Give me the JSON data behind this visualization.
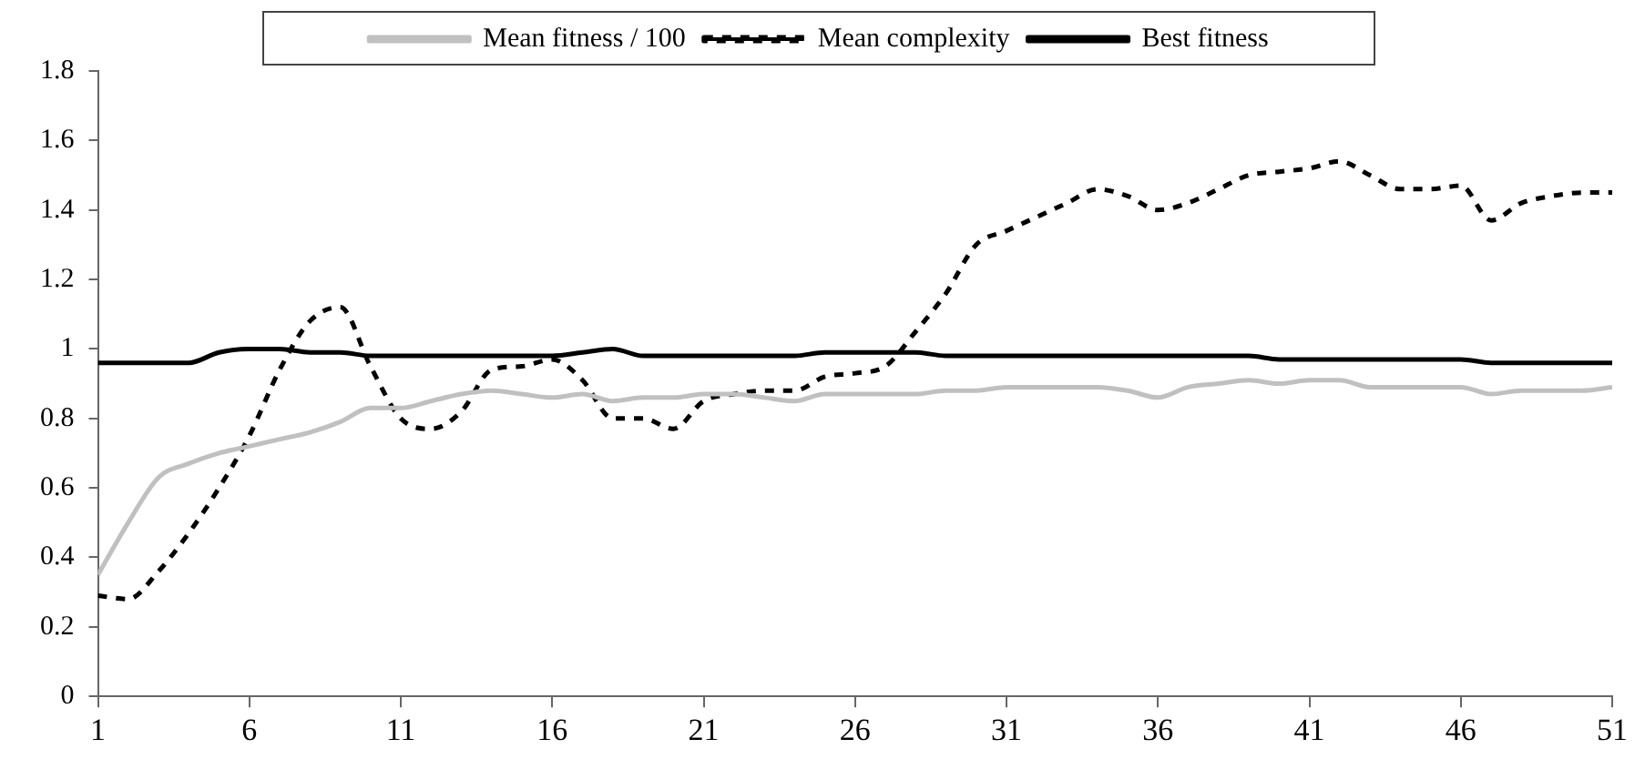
{
  "chart_data": {
    "type": "line",
    "x": [
      1,
      2,
      3,
      4,
      5,
      6,
      7,
      8,
      9,
      10,
      11,
      12,
      13,
      14,
      15,
      16,
      17,
      18,
      19,
      20,
      21,
      22,
      23,
      24,
      25,
      26,
      27,
      28,
      29,
      30,
      31,
      32,
      33,
      34,
      35,
      36,
      37,
      38,
      39,
      40,
      41,
      42,
      43,
      44,
      45,
      46,
      47,
      48,
      49,
      50,
      51
    ],
    "xlim": [
      1,
      51
    ],
    "xticks": [
      1,
      6,
      11,
      16,
      21,
      26,
      31,
      36,
      41,
      46,
      51
    ],
    "series": [
      {
        "name": "Mean fitness / 100",
        "color": "#c0c0c0",
        "line_style": "solid",
        "values": [
          0.35,
          0.5,
          0.63,
          0.67,
          0.7,
          0.72,
          0.74,
          0.76,
          0.79,
          0.83,
          0.83,
          0.85,
          0.87,
          0.88,
          0.87,
          0.86,
          0.87,
          0.85,
          0.86,
          0.86,
          0.87,
          0.87,
          0.86,
          0.85,
          0.87,
          0.87,
          0.87,
          0.87,
          0.88,
          0.88,
          0.89,
          0.89,
          0.89,
          0.89,
          0.88,
          0.86,
          0.89,
          0.9,
          0.91,
          0.9,
          0.91,
          0.91,
          0.89,
          0.89,
          0.89,
          0.89,
          0.87,
          0.88,
          0.88,
          0.88,
          0.89
        ]
      },
      {
        "name": "Mean complexity",
        "color": "#000000",
        "line_style": "dashed",
        "values": [
          0.29,
          0.28,
          0.36,
          0.47,
          0.6,
          0.75,
          0.94,
          1.08,
          1.12,
          0.95,
          0.8,
          0.77,
          0.82,
          0.94,
          0.95,
          0.97,
          0.91,
          0.8,
          0.8,
          0.77,
          0.85,
          0.87,
          0.88,
          0.88,
          0.92,
          0.93,
          0.95,
          1.05,
          1.16,
          1.3,
          1.34,
          1.38,
          1.42,
          1.46,
          1.44,
          1.4,
          1.42,
          1.46,
          1.5,
          1.51,
          1.52,
          1.54,
          1.5,
          1.46,
          1.46,
          1.47,
          1.37,
          1.42,
          1.44,
          1.45,
          1.45
        ]
      },
      {
        "name": "Best fitness",
        "color": "#000000",
        "line_style": "solid",
        "values": [
          0.96,
          0.96,
          0.96,
          0.96,
          0.99,
          1.0,
          1.0,
          0.99,
          0.99,
          0.98,
          0.98,
          0.98,
          0.98,
          0.98,
          0.98,
          0.98,
          0.99,
          1.0,
          0.98,
          0.98,
          0.98,
          0.98,
          0.98,
          0.98,
          0.99,
          0.99,
          0.99,
          0.99,
          0.98,
          0.98,
          0.98,
          0.98,
          0.98,
          0.98,
          0.98,
          0.98,
          0.98,
          0.98,
          0.98,
          0.97,
          0.97,
          0.97,
          0.97,
          0.97,
          0.97,
          0.97,
          0.96,
          0.96,
          0.96,
          0.96,
          0.96
        ]
      }
    ],
    "ylim": [
      0,
      1.8
    ],
    "yticks": [
      0,
      0.2,
      0.4,
      0.6,
      0.8,
      1,
      1.2,
      1.4,
      1.6,
      1.8
    ],
    "grid": false,
    "legend": "top"
  }
}
